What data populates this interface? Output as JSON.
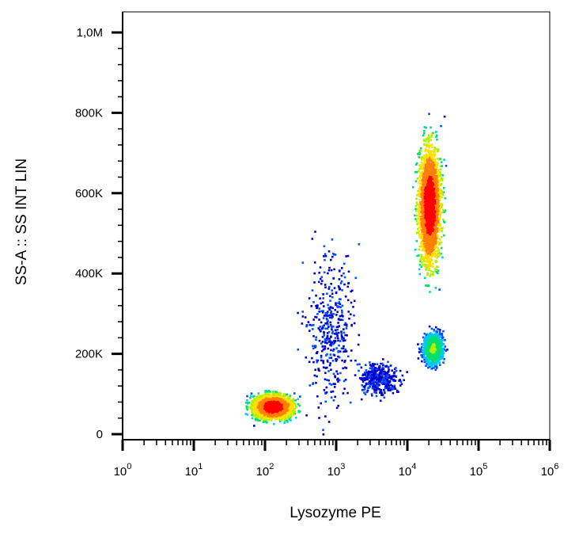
{
  "chart_data": {
    "type": "scatter",
    "xlabel": "Lysozyme PE",
    "ylabel": "SS-A :: SS INT LIN",
    "x_scale": "log",
    "xlim": [
      1,
      1000000
    ],
    "ylim": [
      0,
      1000000
    ],
    "x_tick_labels": [
      {
        "value": 1,
        "base": "10",
        "exp": "0"
      },
      {
        "value": 10,
        "base": "10",
        "exp": "1"
      },
      {
        "value": 100,
        "base": "10",
        "exp": "2"
      },
      {
        "value": 1000,
        "base": "10",
        "exp": "3"
      },
      {
        "value": 10000,
        "base": "10",
        "exp": "4"
      },
      {
        "value": 100000,
        "base": "10",
        "exp": "5"
      },
      {
        "value": 1000000,
        "base": "10",
        "exp": "6"
      }
    ],
    "y_ticks": [
      {
        "value": 0,
        "label": "0"
      },
      {
        "value": 200000,
        "label": "200K"
      },
      {
        "value": 400000,
        "label": "400K"
      },
      {
        "value": 600000,
        "label": "600K"
      },
      {
        "value": 800000,
        "label": "800K"
      },
      {
        "value": 1000000,
        "label": "1,0M"
      }
    ],
    "colormap": [
      "#0000cc",
      "#0050ff",
      "#00c8ff",
      "#00e070",
      "#b0f000",
      "#ffe000",
      "#ff8000",
      "#ff0000"
    ],
    "populations": [
      {
        "log10_x_center": 2.1,
        "y_center": 70000,
        "log10_x_spread": 0.28,
        "y_spread": 30000,
        "density": "high"
      },
      {
        "log10_x_center": 4.3,
        "y_center": 570000,
        "log10_x_spread": 0.16,
        "y_spread": 150000,
        "density": "high"
      },
      {
        "log10_x_center": 4.35,
        "y_center": 215000,
        "log10_x_spread": 0.14,
        "y_spread": 40000,
        "density": "medium"
      },
      {
        "log10_x_center": 2.9,
        "y_center": 260000,
        "log10_x_spread": 0.35,
        "y_spread": 200000,
        "density": "low"
      },
      {
        "log10_x_center": 3.6,
        "y_center": 140000,
        "log10_x_spread": 0.3,
        "y_spread": 40000,
        "density": "low"
      }
    ]
  }
}
